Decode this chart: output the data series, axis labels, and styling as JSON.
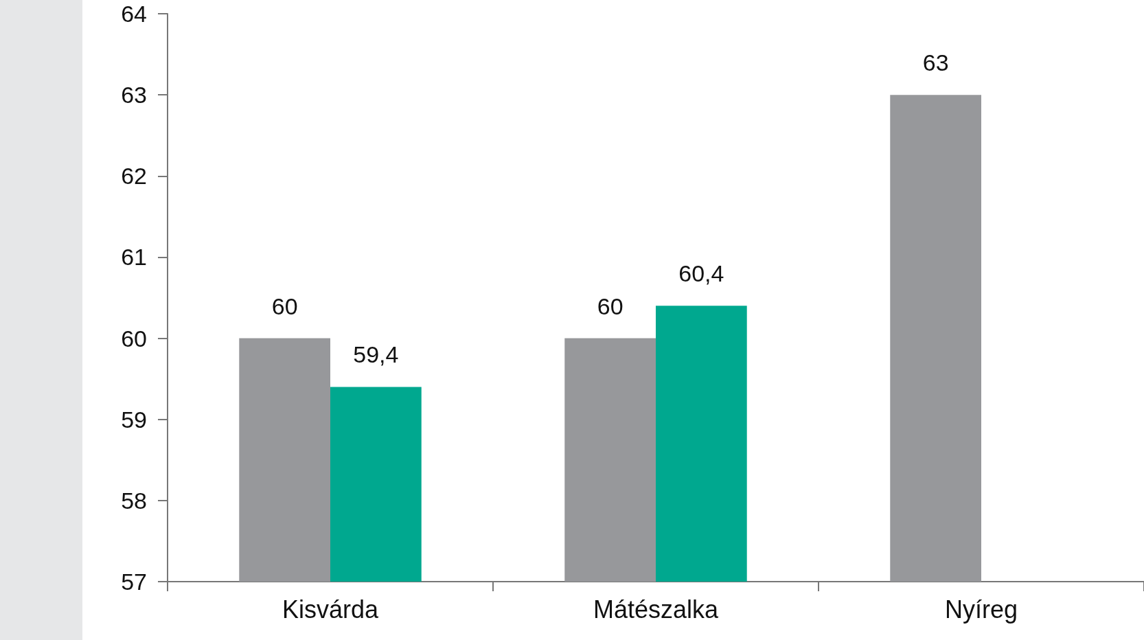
{
  "chart_data": {
    "type": "bar",
    "categories": [
      "Kisvárda",
      "Mátészalka",
      "Nyíreg"
    ],
    "series": [
      {
        "color": "#97989b",
        "values": [
          60,
          60,
          63
        ],
        "value_labels": [
          "60",
          "60",
          "63"
        ]
      },
      {
        "color": "#00a88f",
        "values": [
          59.4,
          60.4,
          null
        ],
        "value_labels": [
          "59,4",
          "60,4",
          null
        ]
      }
    ],
    "ylim": [
      57,
      64
    ],
    "yticks": [
      57,
      58,
      59,
      60,
      61,
      62,
      63,
      64
    ],
    "grid": false
  }
}
